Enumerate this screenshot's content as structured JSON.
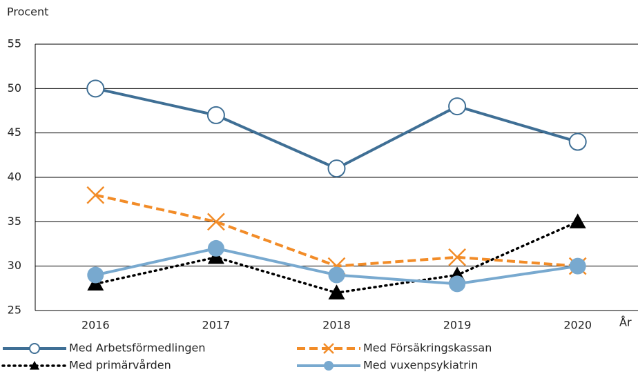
{
  "chart_data": {
    "type": "line",
    "ylabel": "Procent",
    "xlabel": "År",
    "categories": [
      "2016",
      "2017",
      "2018",
      "2019",
      "2020"
    ],
    "series": [
      {
        "name": "Med Arbetsförmedlingen",
        "color": "#3f6f95",
        "dash": "solid",
        "marker": "open-circle",
        "values": [
          50,
          47,
          41,
          48,
          44
        ]
      },
      {
        "name": "Med Försäkringskassan",
        "color": "#f28c28",
        "dash": "dashed",
        "marker": "x",
        "values": [
          38,
          35,
          30,
          31,
          30
        ]
      },
      {
        "name": "Med primärvården",
        "color": "#000000",
        "dash": "dotted",
        "marker": "triangle",
        "values": [
          28,
          31,
          27,
          29,
          35
        ]
      },
      {
        "name": "Med vuxenpsykiatrin",
        "color": "#78a9cf",
        "dash": "solid",
        "marker": "circle",
        "values": [
          29,
          32,
          29,
          28,
          30
        ]
      }
    ],
    "ylim": [
      25,
      55
    ],
    "yticks": [
      25,
      30,
      35,
      40,
      45,
      50,
      55
    ],
    "grid": true,
    "legend": "bottom"
  }
}
